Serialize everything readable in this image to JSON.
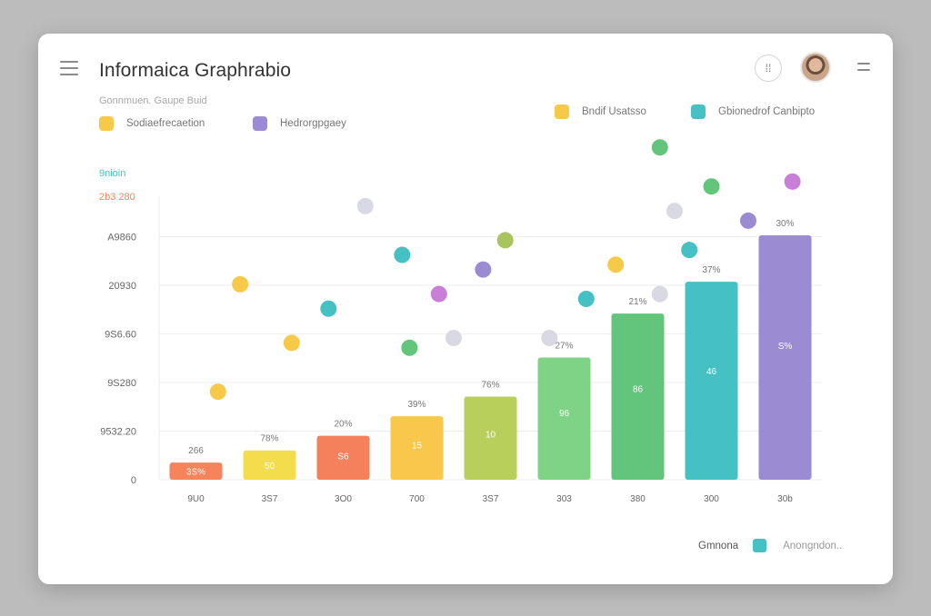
{
  "header": {
    "title": "Informaica Graphrabio",
    "subtitle": "Gonnmuen. Gaupe Buid",
    "circle_icon": "grid-icon",
    "menu_icon": "hamburger-icon",
    "more_icon": "more-icon"
  },
  "legend_top": [
    {
      "label": "Sodiaefrecaetion",
      "color": "#f7c948"
    },
    {
      "label": "Hedrorgpgaey",
      "color": "#9b8bd3"
    },
    {
      "label": "Bndif Usatsso",
      "color": "#f7c948"
    },
    {
      "label": "Gbionedrof Canbipto",
      "color": "#45c1c4"
    }
  ],
  "legend_bottom": {
    "left": "Gmnona",
    "right": "Anongndon..",
    "color": "#45c1c4"
  },
  "axis_header": {
    "label1": "9nioin",
    "label2": "2b3 280"
  },
  "colors": {
    "orange": "#f5845c",
    "yellow": "#f3dd4d",
    "coral": "#f4805c",
    "amber": "#f8c74c",
    "olive": "#b8cf5c",
    "lightgreen": "#7fd386",
    "green": "#63c47b",
    "teal": "#45c1c4",
    "purple": "#9b8bd3"
  },
  "chart_data": {
    "type": "bar",
    "y_tick_labels": [
      "0",
      "9532.20",
      "9S280",
      "9S6.60",
      "20930",
      "A9860"
    ],
    "categories": [
      "9U0",
      "3S7",
      "3O0",
      "700",
      "3S7",
      "303",
      "380",
      "300",
      "30b"
    ],
    "values": [
      3.5,
      6,
      9,
      13,
      17,
      25,
      34,
      40.5,
      50
    ],
    "top_labels": [
      "266",
      "78%",
      "20%",
      "39%",
      "76%",
      "27%",
      "21%",
      "37%",
      "30%"
    ],
    "inner_labels": [
      "3S%",
      "50",
      "S6",
      "15",
      "10",
      "96",
      "86",
      "46",
      "S%"
    ],
    "bar_colors": [
      "#f5845c",
      "#f3dd4d",
      "#f4805c",
      "#f8c74c",
      "#b8cf5c",
      "#7fd386",
      "#63c47b",
      "#45c1c4",
      "#9b8bd3"
    ],
    "ylim": [
      0,
      58
    ],
    "scatter": [
      {
        "x": 0.3,
        "y": 18,
        "color": "#f7c948"
      },
      {
        "x": 0.6,
        "y": 40,
        "color": "#f7c948"
      },
      {
        "x": 1.3,
        "y": 28,
        "color": "#f7c948"
      },
      {
        "x": 1.8,
        "y": 35,
        "color": "#45c1c4"
      },
      {
        "x": 2.3,
        "y": 56,
        "color": "#d9d9e3"
      },
      {
        "x": 2.8,
        "y": 46,
        "color": "#45c1c4"
      },
      {
        "x": 2.9,
        "y": 27,
        "color": "#63c47b"
      },
      {
        "x": 3.3,
        "y": 38,
        "color": "#c97fd8"
      },
      {
        "x": 3.5,
        "y": 29,
        "color": "#d9d9e3"
      },
      {
        "x": 3.9,
        "y": 43,
        "color": "#9b8bd3"
      },
      {
        "x": 4.2,
        "y": 49,
        "color": "#a8c45c"
      },
      {
        "x": 4.8,
        "y": 29,
        "color": "#d9d9e3"
      },
      {
        "x": 5.3,
        "y": 37,
        "color": "#45c1c4"
      },
      {
        "x": 5.7,
        "y": 44,
        "color": "#f7c948"
      },
      {
        "x": 6.3,
        "y": 38,
        "color": "#d9d9e3"
      },
      {
        "x": 6.5,
        "y": 55,
        "color": "#d9d9e3"
      },
      {
        "x": 6.7,
        "y": 47,
        "color": "#45c1c4"
      },
      {
        "x": 6.3,
        "y": 68,
        "color": "#63c47b"
      },
      {
        "x": 7.0,
        "y": 60,
        "color": "#63c47b"
      },
      {
        "x": 7.5,
        "y": 53,
        "color": "#9b8bd3"
      },
      {
        "x": 8.1,
        "y": 61,
        "color": "#c97fd8"
      }
    ]
  }
}
